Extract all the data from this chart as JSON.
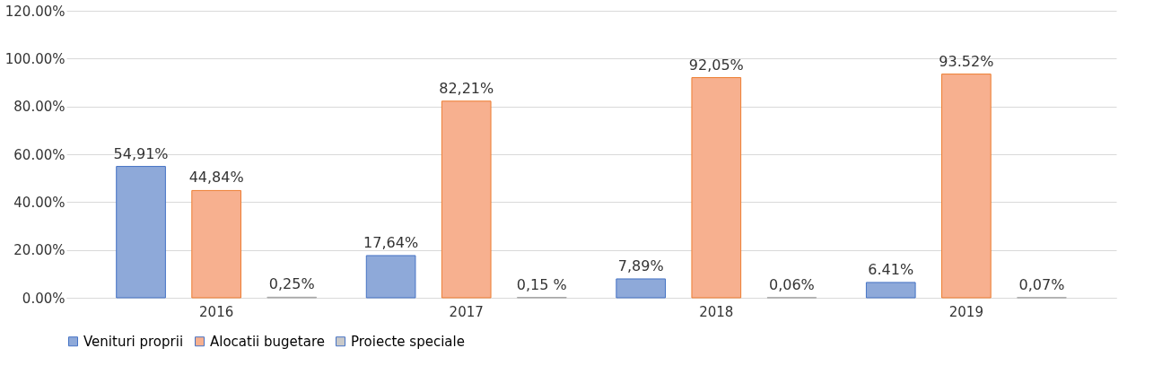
{
  "chart_data": {
    "type": "bar",
    "categories": [
      "2016",
      "2017",
      "2018",
      "2019"
    ],
    "series": [
      {
        "name": "Venituri proprii",
        "color": "#8ea9d9",
        "values": [
          54.91,
          17.64,
          7.89,
          6.41
        ],
        "value_labels": [
          "54,91%",
          "17,64%",
          "7,89%",
          "6.41%"
        ]
      },
      {
        "name": "Alocatii bugetare",
        "color": "#f7b08f",
        "values": [
          44.84,
          82.21,
          92.05,
          93.52
        ],
        "value_labels": [
          "44,84%",
          "82,21%",
          "92,05%",
          "93.52%"
        ]
      },
      {
        "name": "Proiecte speciale",
        "color": "#c9c9c9",
        "values": [
          0.25,
          0.15,
          0.06,
          0.07
        ],
        "value_labels": [
          "0,25%",
          "0,15 %",
          "0,06%",
          "0,07%"
        ]
      }
    ],
    "ylim": [
      0,
      120
    ],
    "yticks": [
      {
        "value": 0,
        "label": "0.00%"
      },
      {
        "value": 20,
        "label": "20.00%"
      },
      {
        "value": 40,
        "label": "40.00%"
      },
      {
        "value": 60,
        "label": "60.00%"
      },
      {
        "value": 80,
        "label": "80.00%"
      },
      {
        "value": 100,
        "label": "100.00%"
      },
      {
        "value": 120,
        "label": "120.00%"
      }
    ],
    "grid": "y",
    "legend": "bottom"
  }
}
